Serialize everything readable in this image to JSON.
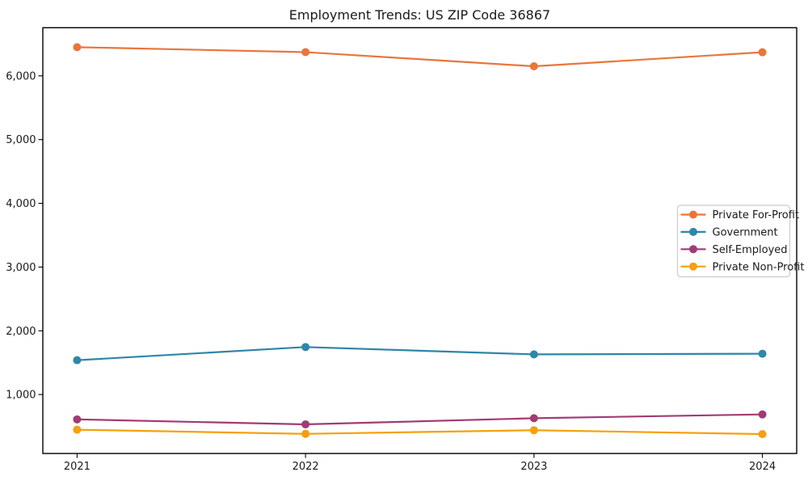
{
  "figure": {
    "background_color": "#ffffff",
    "text_color": "#1a1a1a",
    "frame_color": "#000000",
    "legend_border_color": "#cccccc",
    "legend_fill_color": "#ffffff"
  },
  "chart_data": {
    "type": "line",
    "title": "Employment Trends: US ZIP Code 36867",
    "xlabel": "",
    "ylabel": "",
    "x": [
      2021,
      2022,
      2023,
      2024
    ],
    "x_tick_labels": [
      "2021",
      "2022",
      "2023",
      "2024"
    ],
    "series": [
      {
        "name": "Private For-Profit",
        "color": "#E8763B",
        "values": [
          6450,
          6372,
          6150,
          6370
        ]
      },
      {
        "name": "Government",
        "color": "#2E86A8",
        "values": [
          1538,
          1745,
          1630,
          1640
        ]
      },
      {
        "name": "Self-Employed",
        "color": "#A23B72",
        "values": [
          610,
          532,
          628,
          688
        ]
      },
      {
        "name": "Private Non-Profit",
        "color": "#F5A00C",
        "values": [
          448,
          383,
          440,
          379
        ]
      }
    ],
    "yticks": [
      1000,
      2000,
      3000,
      4000,
      5000,
      6000
    ],
    "ytick_labels": [
      "1,000",
      "2,000",
      "3,000",
      "4,000",
      "5,000",
      "6,000"
    ],
    "ylim": [
      75,
      6755
    ],
    "xlim": [
      2020.85,
      2024.15
    ],
    "grid": false,
    "marker": "o",
    "legend_position": "center right"
  }
}
